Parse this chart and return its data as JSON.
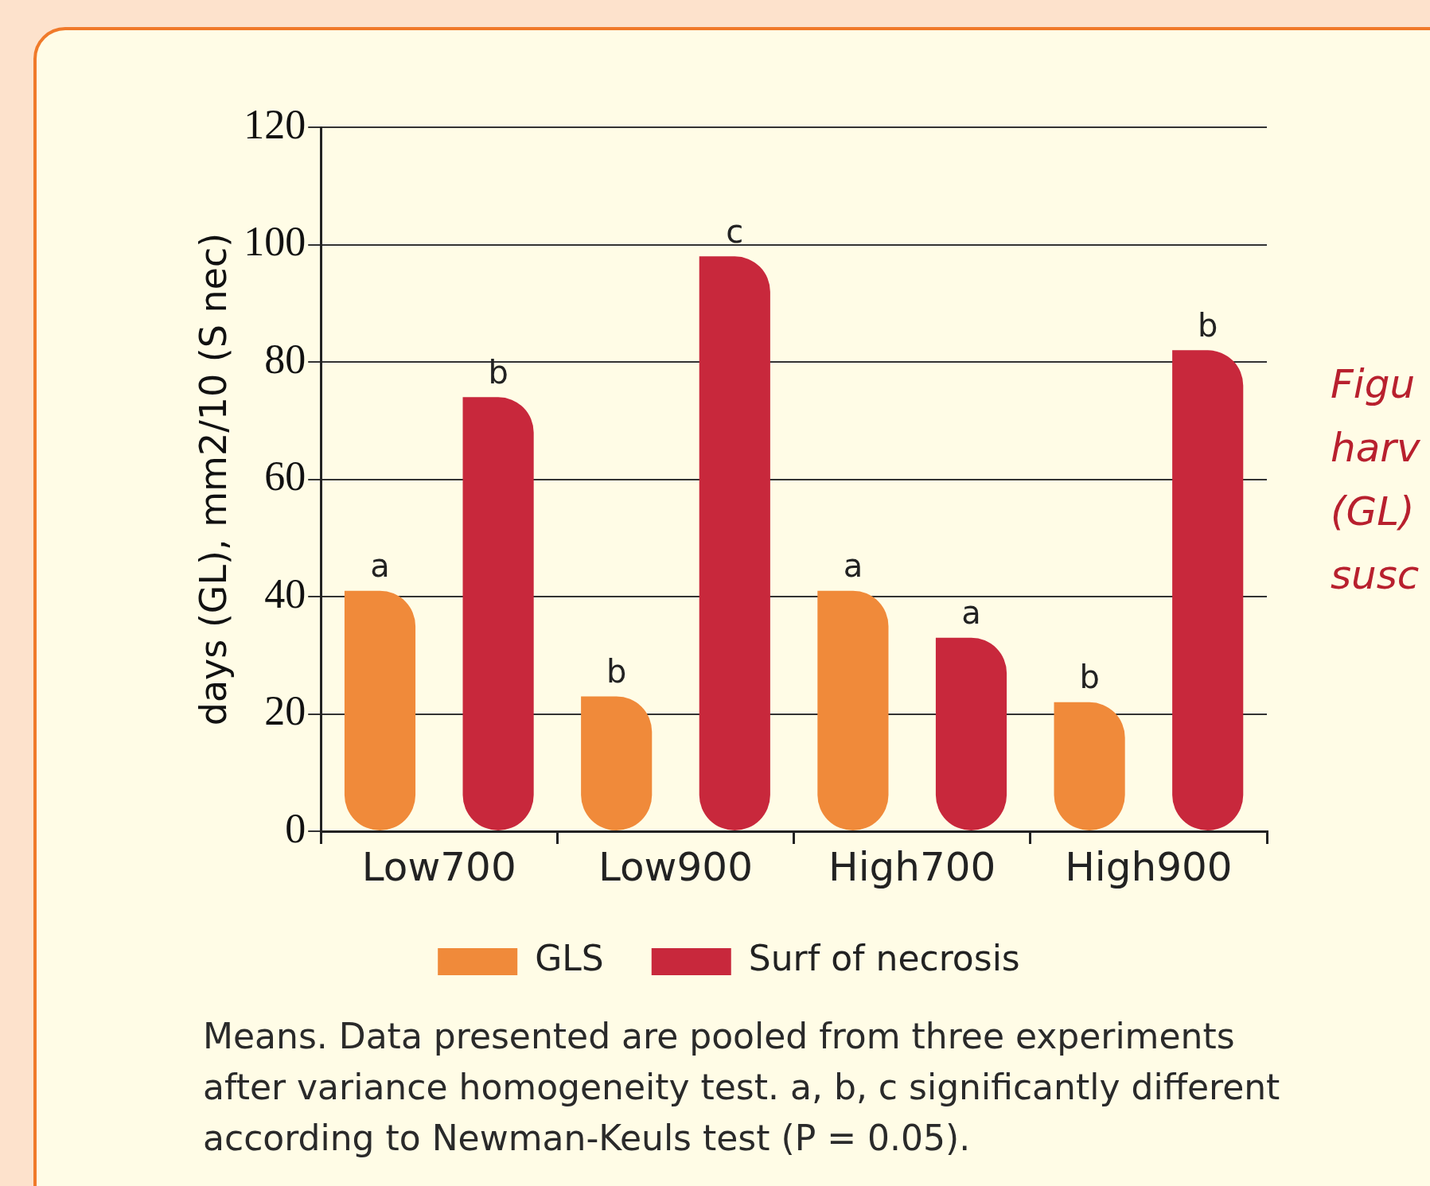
{
  "chart_data": {
    "type": "bar",
    "ylabel": "days (GL), mm2/10 (S nec)",
    "categories": [
      "Low700",
      "Low900",
      "High700",
      "High900"
    ],
    "series": [
      {
        "name": "GLS",
        "color": "#f08a3a",
        "values": [
          41,
          23,
          41,
          22
        ],
        "value_labels": [
          "a",
          "b",
          "a",
          "b"
        ]
      },
      {
        "name": "Surf of necrosis",
        "color": "#c8283c",
        "values": [
          74,
          98,
          33,
          82
        ],
        "value_labels": [
          "b",
          "c",
          "a",
          "b"
        ]
      }
    ],
    "ylim": [
      0,
      120
    ],
    "yticks": [
      0,
      20,
      40,
      60,
      80,
      100,
      120
    ],
    "grid": "y",
    "legend": "bottom",
    "annotations": [
      "Means. Data presented are pooled from three experiments after variance homogeneity test. a, b, c significantly different according to Newman-Keuls test (P = 0.05).",
      "Figu",
      "harv",
      "(GL)",
      "susc"
    ]
  }
}
